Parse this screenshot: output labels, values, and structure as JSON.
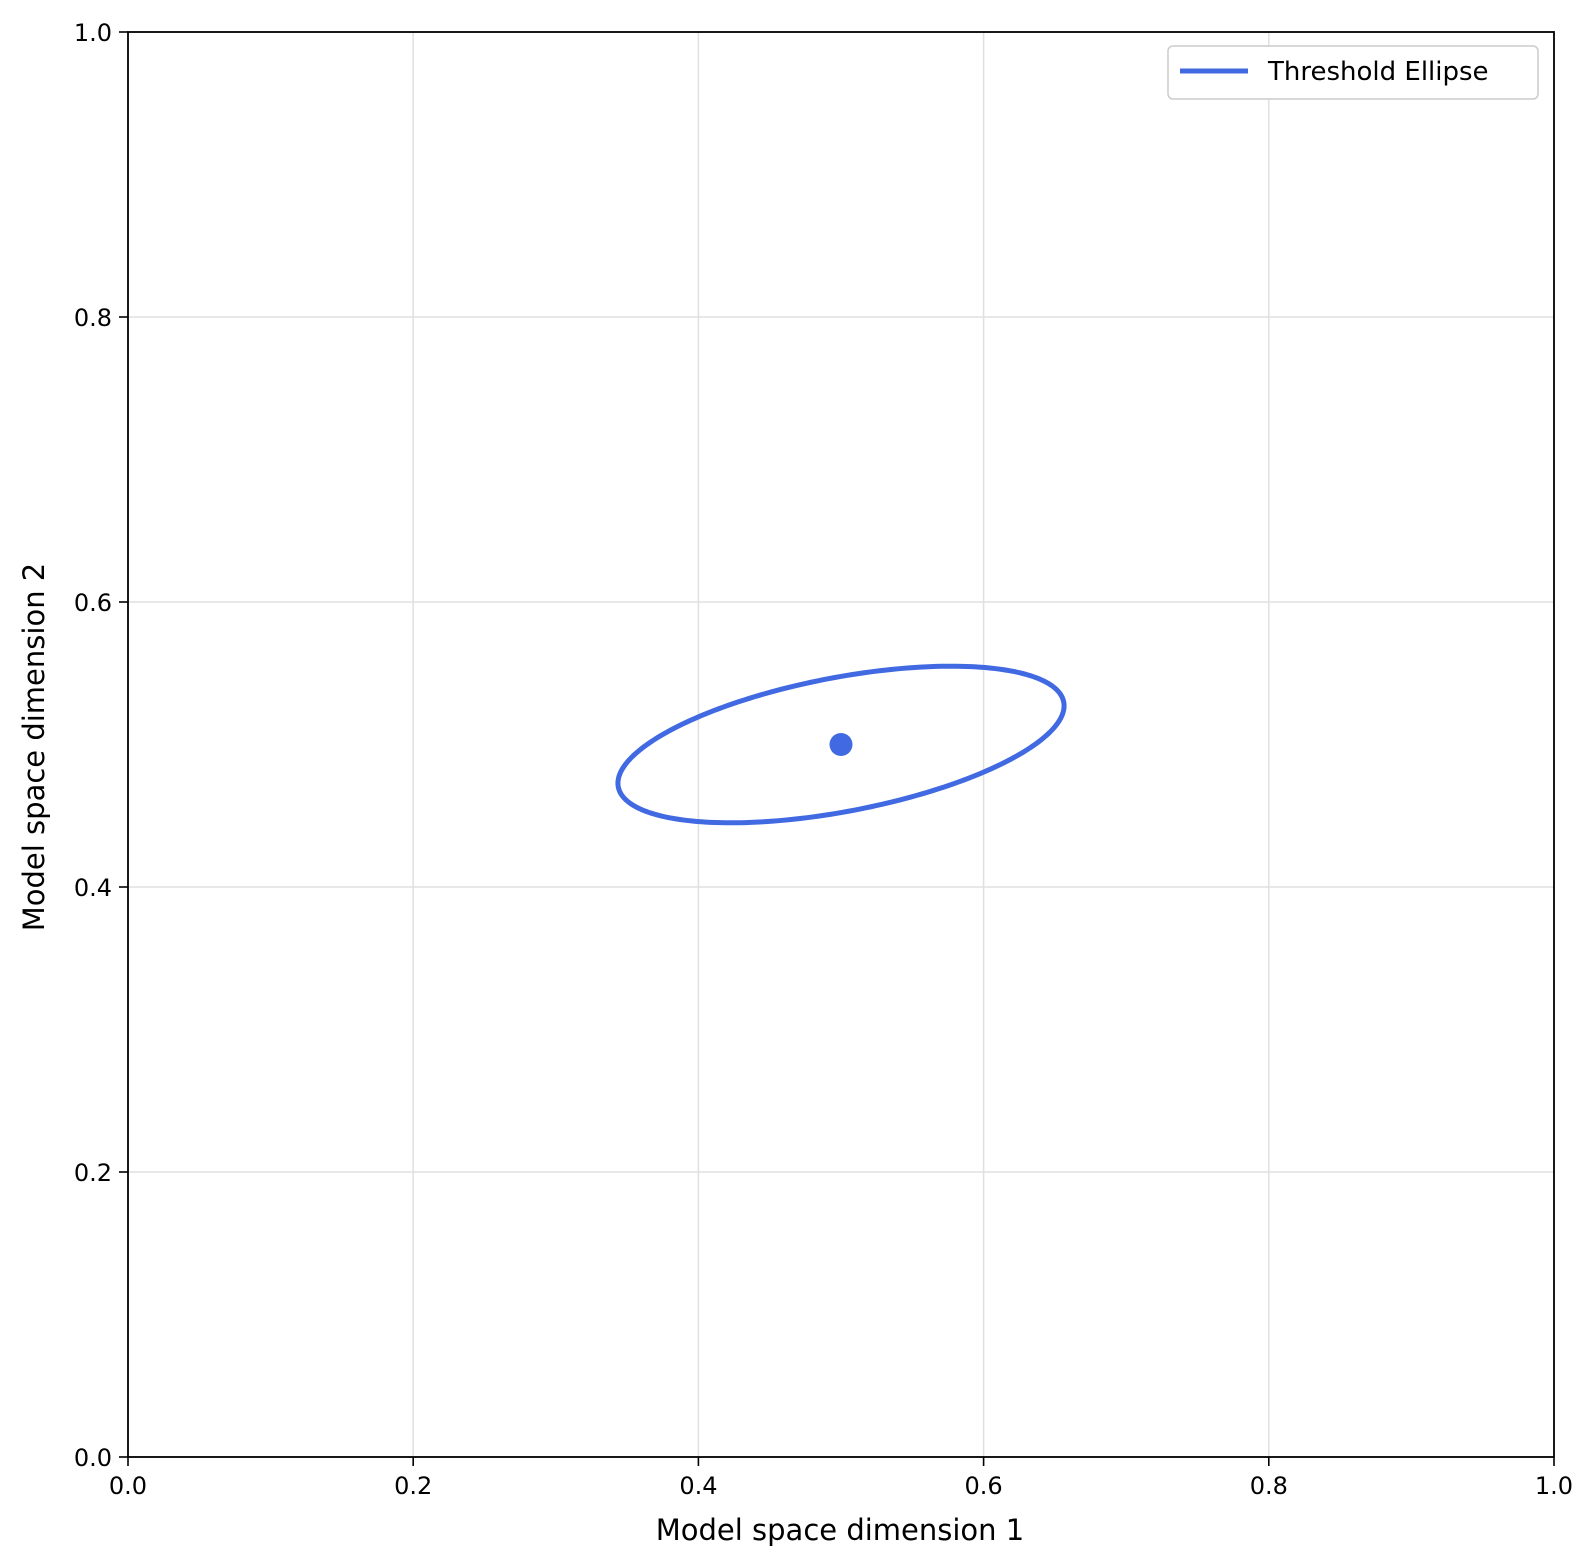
{
  "chart_data": {
    "type": "line",
    "title": "",
    "xlabel": "Model space dimension 1",
    "ylabel": "Model space dimension 2",
    "xlim": [
      0.0,
      1.0
    ],
    "ylim": [
      0.0,
      1.0
    ],
    "xticks": [
      "0.0",
      "0.2",
      "0.4",
      "0.6",
      "0.8",
      "1.0"
    ],
    "yticks": [
      "0.0",
      "0.2",
      "0.4",
      "0.6",
      "0.8",
      "1.0"
    ],
    "grid": true,
    "legend_position": "top-right",
    "color": "#4169e1",
    "series": [
      {
        "name": "Threshold Ellipse",
        "kind": "ellipse",
        "center": [
          0.5,
          0.5
        ],
        "semi_major": 0.159,
        "semi_minor": 0.047,
        "rotation_deg": 10.8
      },
      {
        "kind": "point",
        "x": [
          0.5
        ],
        "y": [
          0.5
        ]
      }
    ]
  }
}
